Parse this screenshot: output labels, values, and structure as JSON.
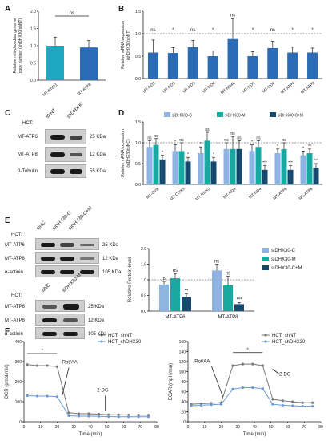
{
  "panels": {
    "A": {
      "label": "A",
      "chart_data": {
        "type": "bar",
        "categories": [
          "MT-RNR1",
          "MT-ATP8"
        ],
        "values": [
          1.0,
          0.95
        ],
        "errors": [
          0.25,
          0.2
        ],
        "colors": [
          "#1fa8c1",
          "#2a6cb5"
        ],
        "ylabel_lines": [
          "Relative mitochondrial genome",
          "copy number (shDHX30/shNT)"
        ],
        "ylim": [
          0,
          2.0
        ],
        "yticks": [
          "0.0",
          "0.5",
          "1.0",
          "1.5",
          "2.0"
        ],
        "sig": "ns"
      }
    },
    "B": {
      "label": "B",
      "chart_data": {
        "type": "bar",
        "categories": [
          "MT-ND1",
          "MT-ND2",
          "MT-ND3",
          "MT-ND4",
          "MT-ND4L",
          "MT-ND5",
          "MT-ND6",
          "MT-ATP6",
          "MT-ATP8"
        ],
        "values": [
          0.58,
          0.57,
          0.7,
          0.5,
          0.88,
          0.5,
          0.68,
          0.58,
          0.58
        ],
        "errors": [
          0.28,
          0.12,
          0.15,
          0.12,
          0.45,
          0.1,
          0.15,
          0.12,
          0.1
        ],
        "sig": [
          "ns",
          "*",
          "ns",
          "*",
          "ns",
          "*",
          "ns",
          "*",
          "*"
        ],
        "color": "#2a6cb5",
        "ylabel_lines": [
          "Relative mRNA expression",
          "(shDHX30/shNT)"
        ],
        "ylim": [
          0,
          1.5
        ],
        "yticks": [
          "0.0",
          "0.5",
          "1.0",
          "1.5"
        ]
      }
    },
    "C": {
      "label": "C",
      "cell_label": "HCT:",
      "lanes": [
        "shNT",
        "shDHX30"
      ],
      "rows": [
        {
          "name": "MT-ATP6",
          "size": "25 KDa"
        },
        {
          "name": "MT-ATP8",
          "size": "12 KDa"
        },
        {
          "name": "β-Tubulin",
          "size": "55 KDa"
        }
      ]
    },
    "D": {
      "label": "D",
      "chart_data": {
        "type": "bar",
        "categories": [
          "MT-CYB",
          "MT-COX3",
          "MT-RNR2",
          "MT-ND3",
          "MT-ND4",
          "MT-ATP6",
          "MT-ATP8"
        ],
        "series": [
          {
            "name": "siDHX30-C",
            "color": "#8fb4e3",
            "values": [
              0.9,
              0.8,
              0.75,
              0.85,
              0.8,
              0.75,
              0.7
            ],
            "errors": [
              0.15,
              0.15,
              0.15,
              0.15,
              0.15,
              0.1,
              0.1
            ],
            "sig": [
              "ns",
              "*",
              "*",
              "ns",
              "*",
              "*",
              "*"
            ]
          },
          {
            "name": "siDHX30-M",
            "color": "#1aa9a0",
            "values": [
              0.95,
              0.8,
              1.05,
              0.85,
              0.9,
              0.85,
              0.75
            ],
            "errors": [
              0.15,
              0.2,
              0.2,
              0.3,
              0.15,
              0.15,
              0.1
            ],
            "sig": [
              "ns",
              "ns",
              "ns",
              "ns",
              "ns",
              "ns",
              "**"
            ]
          },
          {
            "name": "siDHX30-C+M",
            "color": "#17486e",
            "values": [
              0.6,
              0.55,
              0.55,
              0.85,
              0.35,
              0.35,
              0.4
            ],
            "errors": [
              0.1,
              0.1,
              0.1,
              0.2,
              0.1,
              0.1,
              0.1
            ],
            "sig": [
              "*",
              "*",
              "*",
              "ns",
              "***",
              "***",
              "**"
            ]
          }
        ],
        "ylabel_lines": [
          "Relative mRNA expression",
          "(siDHX30/siNC)"
        ],
        "ylim": [
          0,
          1.5
        ],
        "yticks": [
          "0.0",
          "0.5",
          "1.0",
          "1.5"
        ]
      }
    },
    "E": {
      "label": "E",
      "blot1": {
        "cell_label": "HCT:",
        "lanes": [
          "siNC",
          "siDHX30-C",
          "siDHX30-C+M"
        ],
        "rows": [
          {
            "name": "MT-ATP6",
            "size": "25 KDa"
          },
          {
            "name": "MT-ATP8",
            "size": "12 KDa"
          },
          {
            "name": "α-actinin",
            "size": "105 KDa"
          }
        ]
      },
      "blot2": {
        "cell_label": "HCT:",
        "lanes": [
          "siNC",
          "siDHX30-M"
        ],
        "rows": [
          {
            "name": "MT-ATP6",
            "size": "25 KDa"
          },
          {
            "name": "MT-ATP8",
            "size": "12 KDa"
          },
          {
            "name": "α-actinin",
            "size": "105 KDa"
          }
        ]
      },
      "chart_data": {
        "type": "bar",
        "categories": [
          "MT-ATP6",
          "MT-ATP8"
        ],
        "series": [
          {
            "name": "siDHX30-C",
            "color": "#8fb4e3",
            "values": [
              0.85,
              1.3
            ],
            "errors": [
              0.1,
              0.2
            ],
            "sig": [
              "ns",
              "ns"
            ]
          },
          {
            "name": "siDHX30-M",
            "color": "#1aa9a0",
            "values": [
              1.05,
              0.82
            ],
            "errors": [
              0.15,
              0.3
            ],
            "sig": [
              "ns",
              "ns"
            ]
          },
          {
            "name": "siDHX30-C+M",
            "color": "#17486e",
            "values": [
              0.45,
              0.22
            ],
            "errors": [
              0.1,
              0.05
            ],
            "sig": [
              "**",
              "***"
            ]
          }
        ],
        "ylabel": "Relative Protein level",
        "ylim": [
          0,
          2.0
        ],
        "yticks": [
          "0.0",
          "0.5",
          "1.0",
          "1.5",
          "2.0"
        ]
      }
    },
    "F": {
      "label": "F",
      "charts": [
        {
          "type": "line",
          "ylabel": "OCR (pmol/min)",
          "xlabel": "Time (min)",
          "xlim": [
            0,
            80
          ],
          "ylim": [
            0,
            400
          ],
          "xticks": [
            "0",
            "10",
            "20",
            "30",
            "40",
            "50",
            "60",
            "70",
            "80"
          ],
          "yticks": [
            "0",
            "100",
            "200",
            "300",
            "400"
          ],
          "x": [
            2,
            8,
            14,
            20,
            27,
            33,
            39,
            45,
            51,
            57,
            63,
            69,
            75
          ],
          "series": [
            {
              "name": "HCT_shNT",
              "color": "#7a7a7a",
              "values": [
                285,
                280,
                280,
                275,
                45,
                40,
                40,
                38,
                35,
                35,
                34,
                33,
                33
              ]
            },
            {
              "name": "HCT_shDHX30",
              "color": "#6a9bd8",
              "values": [
                130,
                128,
                128,
                125,
                30,
                28,
                28,
                27,
                26,
                25,
                25,
                25,
                25
              ]
            }
          ],
          "annotations": [
            "Rot/AA",
            "2-DG"
          ],
          "sig": "*"
        },
        {
          "type": "line",
          "ylabel": "ECAR (mpH/min)",
          "xlabel": "Time (min)",
          "xlim": [
            0,
            80
          ],
          "ylim": [
            0,
            160
          ],
          "xticks": [
            "0",
            "10",
            "20",
            "30",
            "40",
            "50",
            "60",
            "70",
            "80"
          ],
          "yticks": [
            "0",
            "20",
            "40",
            "60",
            "80",
            "100",
            "120",
            "140",
            "160"
          ],
          "x": [
            2,
            8,
            14,
            20,
            27,
            33,
            39,
            45,
            51,
            57,
            63,
            69,
            75
          ],
          "series": [
            {
              "name": "HCT_shNT",
              "color": "#7a7a7a",
              "values": [
                35,
                36,
                37,
                38,
                112,
                115,
                115,
                112,
                45,
                42,
                40,
                38,
                38
              ]
            },
            {
              "name": "HCT_shDHX30",
              "color": "#6a9bd8",
              "values": [
                32,
                33,
                34,
                35,
                65,
                68,
                68,
                66,
                35,
                33,
                32,
                31,
                31
              ]
            }
          ],
          "annotations": [
            "Rot/AA",
            "2-DG"
          ],
          "sig": "*"
        }
      ]
    }
  }
}
